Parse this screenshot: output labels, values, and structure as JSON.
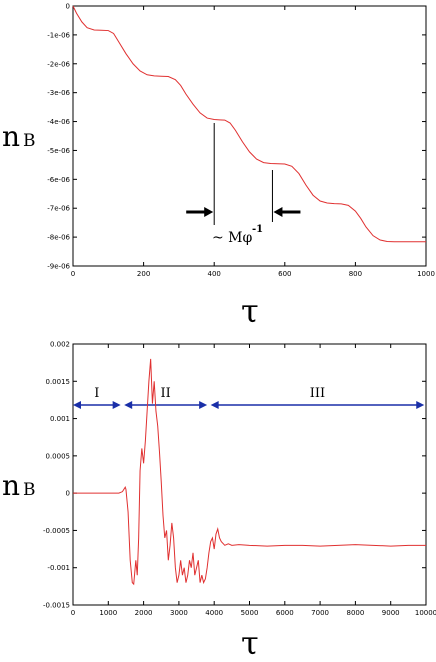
{
  "chart_data": [
    {
      "type": "line",
      "title": "",
      "ylabel": "n",
      "ylabel_sub": "B",
      "xlabel": "τ",
      "xlim": [
        0,
        1000
      ],
      "ylim": [
        -9e-06,
        0
      ],
      "xticks": [
        "0",
        "200",
        "400",
        "600",
        "800",
        "1000"
      ],
      "yticks": [
        "0",
        "-1e-06",
        "-2e-06",
        "-3e-06",
        "-4e-06",
        "-5e-06",
        "-6e-06",
        "-7e-06",
        "-8e-06",
        "-9e-06"
      ],
      "series": [
        {
          "color": "#e03030",
          "x": [
            0,
            10,
            25,
            40,
            60,
            80,
            100,
            115,
            130,
            150,
            170,
            190,
            210,
            230,
            250,
            270,
            290,
            305,
            320,
            340,
            360,
            380,
            400,
            415,
            430,
            445,
            460,
            480,
            500,
            520,
            540,
            560,
            580,
            600,
            620,
            640,
            660,
            680,
            700,
            720,
            740,
            760,
            780,
            800,
            815,
            830,
            850,
            870,
            890,
            910,
            930,
            950,
            970,
            990,
            1000
          ],
          "y": [
            0,
            -2.5e-07,
            -5.5e-07,
            -7.5e-07,
            -8.3e-07,
            -8.4e-07,
            -8.5e-07,
            -9.5e-07,
            -1.25e-06,
            -1.65e-06,
            -2e-06,
            -2.25e-06,
            -2.38e-06,
            -2.42e-06,
            -2.43e-06,
            -2.44e-06,
            -2.55e-06,
            -2.75e-06,
            -3.05e-06,
            -3.4e-06,
            -3.7e-06,
            -3.88e-06,
            -3.93e-06,
            -3.94e-06,
            -3.95e-06,
            -4.05e-06,
            -4.3e-06,
            -4.7e-06,
            -5.05e-06,
            -5.3e-06,
            -5.42e-06,
            -5.45e-06,
            -5.46e-06,
            -5.47e-06,
            -5.55e-06,
            -5.8e-06,
            -6.2e-06,
            -6.55e-06,
            -6.75e-06,
            -6.82e-06,
            -6.84e-06,
            -6.85e-06,
            -6.9e-06,
            -7.1e-06,
            -7.35e-06,
            -7.65e-06,
            -7.95e-06,
            -8.1e-06,
            -8.15e-06,
            -8.16e-06,
            -8.16e-06,
            -8.16e-06,
            -8.16e-06,
            -8.16e-06,
            -8.16e-06
          ]
        }
      ],
      "annotation": {
        "text": "~ Mφ",
        "superscript": "-1",
        "bracket_x": [
          400,
          565
        ]
      }
    },
    {
      "type": "line",
      "title": "",
      "ylabel": "n",
      "ylabel_sub": "B",
      "xlabel": "τ",
      "xlim": [
        0,
        10000
      ],
      "ylim": [
        -0.0015,
        0.002
      ],
      "xticks": [
        "0",
        "1000",
        "2000",
        "3000",
        "4000",
        "5000",
        "6000",
        "7000",
        "8000",
        "9000",
        "10000"
      ],
      "yticks": [
        "0.002",
        "0.0015",
        "0.001",
        "0.0005",
        "0",
        "-0.0005",
        "-0.001",
        "-0.0015"
      ],
      "regions": [
        {
          "label": "I",
          "x": [
            0,
            1350
          ]
        },
        {
          "label": "II",
          "x": [
            1450,
            3800
          ]
        },
        {
          "label": "III",
          "x": [
            3900,
            9950
          ]
        }
      ],
      "series": [
        {
          "color": "#e03030",
          "x": [
            0,
            500,
            1000,
            1300,
            1400,
            1480,
            1500,
            1560,
            1620,
            1680,
            1720,
            1780,
            1820,
            1860,
            1900,
            1950,
            2000,
            2050,
            2100,
            2150,
            2200,
            2250,
            2300,
            2350,
            2400,
            2450,
            2500,
            2550,
            2600,
            2650,
            2700,
            2750,
            2800,
            2850,
            2900,
            2950,
            3000,
            3050,
            3100,
            3150,
            3200,
            3250,
            3300,
            3350,
            3400,
            3450,
            3500,
            3550,
            3600,
            3650,
            3700,
            3750,
            3800,
            3850,
            3900,
            3950,
            4000,
            4050,
            4100,
            4150,
            4200,
            4300,
            4400,
            4500,
            4700,
            5000,
            5500,
            6000,
            6500,
            7000,
            7500,
            8000,
            8500,
            9000,
            9500,
            10000
          ],
          "y": [
            0,
            0,
            0,
            0,
            2e-05,
            8e-05,
            5e-05,
            -0.00025,
            -0.0009,
            -0.0012,
            -0.00122,
            -0.0009,
            -0.0011,
            -0.0006,
            0.0003,
            0.0006,
            0.0004,
            0.0007,
            0.0011,
            0.0015,
            0.0018,
            0.0012,
            0.0015,
            0.0011,
            0.0009,
            0.00055,
            0.00015,
            -0.0003,
            -0.0006,
            -0.0005,
            -0.0009,
            -0.0007,
            -0.0004,
            -0.0006,
            -0.001,
            -0.0012,
            -0.0011,
            -0.0009,
            -0.0011,
            -0.001,
            -0.0012,
            -0.0011,
            -0.0009,
            -0.001,
            -0.0008,
            -0.0011,
            -0.001,
            -0.0009,
            -0.0012,
            -0.0011,
            -0.0012,
            -0.00115,
            -0.001,
            -0.0008,
            -0.00065,
            -0.0006,
            -0.00075,
            -0.00055,
            -0.00048,
            -0.0006,
            -0.00065,
            -0.0007,
            -0.00068,
            -0.0007,
            -0.00069,
            -0.0007,
            -0.00071,
            -0.0007,
            -0.0007,
            -0.00071,
            -0.0007,
            -0.00069,
            -0.0007,
            -0.00071,
            -0.0007,
            -0.0007
          ]
        }
      ]
    }
  ]
}
